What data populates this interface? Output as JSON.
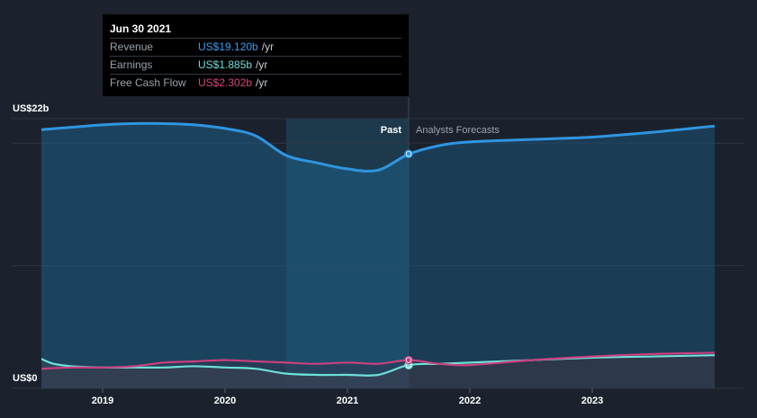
{
  "tooltip": {
    "date": "Jun 30 2021",
    "rows": [
      {
        "label": "Revenue",
        "value": "US$19.120b",
        "unit": "/yr",
        "color": "#3b9cf0"
      },
      {
        "label": "Earnings",
        "value": "US$1.885b",
        "unit": "/yr",
        "color": "#6ee0d8"
      },
      {
        "label": "Free Cash Flow",
        "value": "US$2.302b",
        "unit": "/yr",
        "color": "#d6467f"
      }
    ]
  },
  "labels": {
    "past": "Past",
    "forecast": "Analysts Forecasts"
  },
  "colors": {
    "background": "#1b222d",
    "revenue": "#2f95e0",
    "earnings": "#6ee0d8",
    "fcf": "#c8407e",
    "past_band": "#16485f"
  },
  "chart_data": {
    "type": "line",
    "yaxis_labels": [
      "US$22b",
      "US$0"
    ],
    "ylim": [
      0,
      22
    ],
    "x_ticks": [
      "2019",
      "2020",
      "2021",
      "2022",
      "2023"
    ],
    "x_tick_values": [
      2019.0,
      2020.0,
      2021.0,
      2022.0,
      2023.0
    ],
    "xlim": [
      2018.25,
      2024.25
    ],
    "past_divider": 2021.5,
    "highlight_start": 2020.5,
    "series": [
      {
        "name": "Revenue",
        "x": [
          2018.5,
          2018.75,
          2019.0,
          2019.25,
          2019.5,
          2019.75,
          2020.0,
          2020.25,
          2020.5,
          2020.75,
          2021.0,
          2021.25,
          2021.5,
          2021.75,
          2022.0,
          2022.5,
          2023.0,
          2023.5,
          2024.0
        ],
        "y": [
          21.1,
          21.3,
          21.5,
          21.6,
          21.6,
          21.5,
          21.2,
          20.6,
          19.0,
          18.4,
          17.9,
          17.8,
          19.1,
          19.8,
          20.1,
          20.3,
          20.5,
          20.9,
          21.4
        ]
      },
      {
        "name": "Earnings",
        "x": [
          2018.5,
          2018.6,
          2018.75,
          2019.0,
          2019.25,
          2019.5,
          2019.75,
          2020.0,
          2020.25,
          2020.5,
          2020.75,
          2021.0,
          2021.25,
          2021.5,
          2021.75,
          2022.0,
          2022.5,
          2023.0,
          2023.5,
          2024.0
        ],
        "y": [
          2.4,
          2.0,
          1.8,
          1.7,
          1.7,
          1.7,
          1.8,
          1.7,
          1.6,
          1.2,
          1.1,
          1.1,
          1.1,
          1.9,
          2.0,
          2.1,
          2.3,
          2.5,
          2.6,
          2.7
        ]
      },
      {
        "name": "Free Cash Flow",
        "x": [
          2018.5,
          2018.75,
          2019.0,
          2019.25,
          2019.5,
          2019.75,
          2020.0,
          2020.25,
          2020.5,
          2020.75,
          2021.0,
          2021.25,
          2021.5,
          2021.75,
          2022.0,
          2022.5,
          2023.0,
          2023.5,
          2024.0
        ],
        "y": [
          1.6,
          1.7,
          1.7,
          1.8,
          2.1,
          2.2,
          2.3,
          2.2,
          2.1,
          2.0,
          2.1,
          2.0,
          2.3,
          2.0,
          1.9,
          2.3,
          2.6,
          2.8,
          2.9
        ]
      }
    ],
    "markers": [
      {
        "series": "Revenue",
        "x": 2021.5,
        "y": 19.12
      },
      {
        "series": "Earnings",
        "x": 2021.5,
        "y": 1.885
      },
      {
        "series": "Free Cash Flow",
        "x": 2021.5,
        "y": 2.302
      }
    ]
  }
}
